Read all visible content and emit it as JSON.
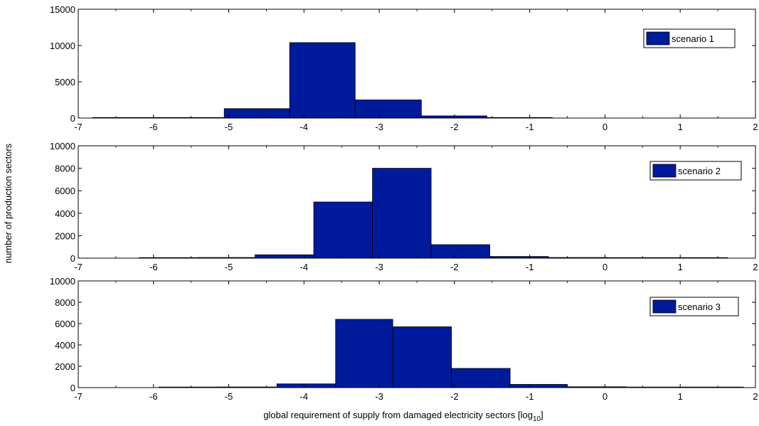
{
  "figure": {
    "ylabel": "number of production sectors",
    "xlabel": "global requirement of supply from damaged electricity sectors [log",
    "xlabel_sub": "10",
    "xlabel_end": "]"
  },
  "colors": {
    "bar_fill": "#001a9c",
    "bar_edge": "#000000",
    "axis": "#000000"
  },
  "chart_data": [
    {
      "type": "bar",
      "legend": "scenario 1",
      "legend_position": "top-right",
      "xlim": [
        -7,
        2
      ],
      "ylim": [
        0,
        15000
      ],
      "xticks": [
        -7,
        -6,
        -5,
        -4,
        -3,
        -2,
        -1,
        0,
        1,
        2
      ],
      "yticks": [
        0,
        5000,
        10000,
        15000
      ],
      "bins": [
        {
          "x0": -6.81,
          "x1": -5.93,
          "value": 0
        },
        {
          "x0": -5.93,
          "x1": -5.06,
          "value": 0
        },
        {
          "x0": -5.06,
          "x1": -4.19,
          "value": 1300
        },
        {
          "x0": -4.19,
          "x1": -3.32,
          "value": 10400
        },
        {
          "x0": -3.32,
          "x1": -2.44,
          "value": 2500
        },
        {
          "x0": -2.44,
          "x1": -1.57,
          "value": 300
        },
        {
          "x0": -1.57,
          "x1": -0.7,
          "value": 60
        }
      ]
    },
    {
      "type": "bar",
      "legend": "scenario 2",
      "legend_position": "top-right",
      "xlim": [
        -7,
        2
      ],
      "ylim": [
        0,
        10000
      ],
      "xticks": [
        -7,
        -6,
        -5,
        -4,
        -3,
        -2,
        -1,
        0,
        1,
        2
      ],
      "yticks": [
        0,
        2000,
        4000,
        6000,
        8000,
        10000
      ],
      "bins": [
        {
          "x0": -6.19,
          "x1": -5.41,
          "value": 20
        },
        {
          "x0": -5.41,
          "x1": -4.65,
          "value": 60
        },
        {
          "x0": -4.65,
          "x1": -3.87,
          "value": 300
        },
        {
          "x0": -3.87,
          "x1": -3.09,
          "value": 5000
        },
        {
          "x0": -3.09,
          "x1": -2.31,
          "value": 8000
        },
        {
          "x0": -2.31,
          "x1": -1.53,
          "value": 1200
        },
        {
          "x0": -1.53,
          "x1": -0.75,
          "value": 150
        },
        {
          "x0": -0.75,
          "x1": 0.03,
          "value": 60
        },
        {
          "x0": 0.03,
          "x1": 0.85,
          "value": 30
        },
        {
          "x0": 0.85,
          "x1": 1.63,
          "value": 20
        }
      ]
    },
    {
      "type": "bar",
      "legend": "scenario 3",
      "legend_position": "top-right",
      "xlim": [
        -7,
        2
      ],
      "ylim": [
        0,
        10000
      ],
      "xticks": [
        -7,
        -6,
        -5,
        -4,
        -3,
        -2,
        -1,
        0,
        1,
        2
      ],
      "yticks": [
        0,
        2000,
        4000,
        6000,
        8000,
        10000
      ],
      "bins": [
        {
          "x0": -5.93,
          "x1": -5.15,
          "value": 30
        },
        {
          "x0": -5.15,
          "x1": -4.36,
          "value": 60
        },
        {
          "x0": -4.36,
          "x1": -3.58,
          "value": 350
        },
        {
          "x0": -3.58,
          "x1": -2.82,
          "value": 6400
        },
        {
          "x0": -2.82,
          "x1": -2.04,
          "value": 5700
        },
        {
          "x0": -2.04,
          "x1": -1.26,
          "value": 1800
        },
        {
          "x0": -1.26,
          "x1": -0.5,
          "value": 300
        },
        {
          "x0": -0.5,
          "x1": 0.28,
          "value": 80
        },
        {
          "x0": 0.28,
          "x1": 1.06,
          "value": 30
        },
        {
          "x0": 1.06,
          "x1": 1.84,
          "value": 20
        }
      ]
    }
  ]
}
